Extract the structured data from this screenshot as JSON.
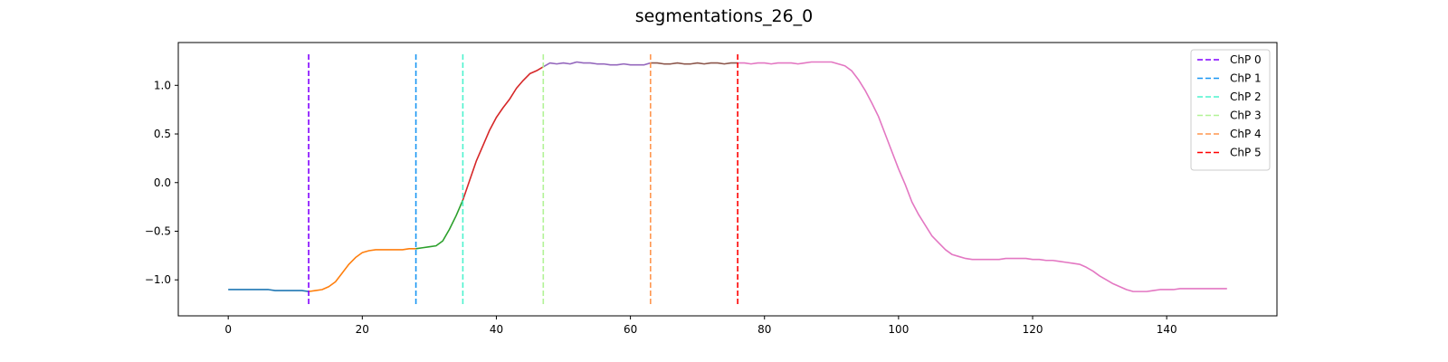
{
  "chart_data": {
    "type": "line",
    "title": "segmentations_26_0",
    "xlabel": "",
    "ylabel": "",
    "xlim": [
      -7.45,
      156.45
    ],
    "ylim": [
      -1.37,
      1.44
    ],
    "x_ticks": [
      0,
      20,
      40,
      60,
      80,
      100,
      120,
      140
    ],
    "y_ticks": [
      -1.0,
      -0.5,
      0.0,
      0.5,
      1.0
    ],
    "y_tick_labels": [
      "−1.0",
      "−0.5",
      "0.0",
      "0.5",
      "1.0"
    ],
    "grid": false,
    "legend_position": "top-right",
    "segment_colors": [
      "#1f77b4",
      "#ff7f0e",
      "#2ca02c",
      "#d62728",
      "#9467bd",
      "#8c564b",
      "#e377c2"
    ],
    "segment_boundaries": [
      0,
      12,
      28,
      35,
      47,
      63,
      76,
      149
    ],
    "values": [
      -1.1,
      -1.1,
      -1.1,
      -1.1,
      -1.1,
      -1.1,
      -1.1,
      -1.11,
      -1.11,
      -1.11,
      -1.11,
      -1.11,
      -1.12,
      -1.11,
      -1.1,
      -1.07,
      -1.02,
      -0.93,
      -0.84,
      -0.77,
      -0.72,
      -0.7,
      -0.69,
      -0.69,
      -0.69,
      -0.69,
      -0.69,
      -0.68,
      -0.68,
      -0.67,
      -0.66,
      -0.65,
      -0.6,
      -0.48,
      -0.34,
      -0.18,
      0.02,
      0.22,
      0.38,
      0.54,
      0.67,
      0.77,
      0.86,
      0.97,
      1.05,
      1.12,
      1.15,
      1.19,
      1.23,
      1.22,
      1.23,
      1.22,
      1.24,
      1.23,
      1.23,
      1.22,
      1.22,
      1.21,
      1.21,
      1.22,
      1.21,
      1.21,
      1.21,
      1.23,
      1.23,
      1.22,
      1.22,
      1.23,
      1.22,
      1.22,
      1.23,
      1.22,
      1.23,
      1.23,
      1.22,
      1.23,
      1.23,
      1.23,
      1.22,
      1.23,
      1.23,
      1.22,
      1.23,
      1.23,
      1.23,
      1.22,
      1.23,
      1.24,
      1.24,
      1.24,
      1.24,
      1.22,
      1.2,
      1.15,
      1.06,
      0.95,
      0.82,
      0.68,
      0.5,
      0.32,
      0.14,
      -0.02,
      -0.2,
      -0.33,
      -0.44,
      -0.55,
      -0.62,
      -0.69,
      -0.74,
      -0.76,
      -0.78,
      -0.79,
      -0.79,
      -0.79,
      -0.79,
      -0.79,
      -0.78,
      -0.78,
      -0.78,
      -0.78,
      -0.79,
      -0.79,
      -0.8,
      -0.8,
      -0.81,
      -0.82,
      -0.83,
      -0.84,
      -0.87,
      -0.91,
      -0.96,
      -1.0,
      -1.04,
      -1.07,
      -1.1,
      -1.12,
      -1.12,
      -1.12,
      -1.11,
      -1.1,
      -1.1,
      -1.1,
      -1.09,
      -1.09,
      -1.09,
      -1.09,
      -1.09,
      -1.09,
      -1.09,
      -1.09
    ],
    "changepoints": [
      {
        "name": "ChP 0",
        "x": 12,
        "color": "#8000ff"
      },
      {
        "name": "ChP 1",
        "x": 28,
        "color": "#1996f3"
      },
      {
        "name": "ChP 2",
        "x": 35,
        "color": "#4df3ce"
      },
      {
        "name": "ChP 3",
        "x": 47,
        "color": "#b2f396"
      },
      {
        "name": "ChP 4",
        "x": 63,
        "color": "#ff964f"
      },
      {
        "name": "ChP 5",
        "x": 76,
        "color": "#ff0000"
      }
    ]
  }
}
